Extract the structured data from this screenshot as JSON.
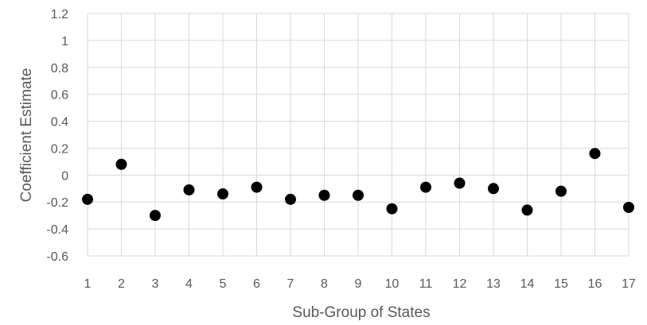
{
  "chart_data": {
    "type": "scatter",
    "title": "",
    "xlabel": "Sub-Group of States",
    "ylabel": "Coefficient Estimate",
    "xlim": [
      1,
      17
    ],
    "ylim": [
      -0.6,
      1.2
    ],
    "x_ticks": [
      "1",
      "2",
      "3",
      "4",
      "5",
      "6",
      "7",
      "8",
      "9",
      "10",
      "11",
      "12",
      "13",
      "14",
      "15",
      "16",
      "17"
    ],
    "y_ticks": [
      "1.2",
      "1",
      "0.8",
      "0.6",
      "0.4",
      "0.2",
      "0",
      "-0.2",
      "-0.4",
      "-0.6"
    ],
    "y_tick_values": [
      1.2,
      1.0,
      0.8,
      0.6,
      0.4,
      0.2,
      0,
      -0.2,
      -0.4,
      -0.6
    ],
    "grid": true,
    "legend": "none",
    "series": [
      {
        "x": [
          1,
          2,
          3,
          4,
          5,
          6,
          7,
          8,
          9,
          10,
          11,
          12,
          13,
          14,
          15,
          16,
          17
        ],
        "y": [
          -0.18,
          0.08,
          -0.3,
          -0.11,
          -0.14,
          -0.09,
          -0.18,
          -0.15,
          -0.15,
          -0.25,
          -0.09,
          -0.06,
          -0.1,
          -0.26,
          -0.12,
          0.16,
          -0.24
        ],
        "color": "#000000"
      }
    ]
  }
}
